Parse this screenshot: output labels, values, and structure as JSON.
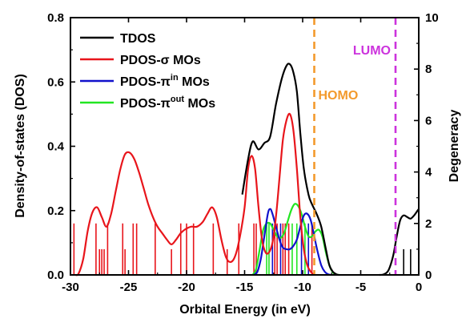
{
  "chart_data": {
    "type": "line",
    "xlabel": "Orbital Energy (in eV)",
    "ylabel": "Density-of-states (DOS)",
    "y2label": "Degeneracy",
    "xlim": [
      -30,
      0
    ],
    "ylim": [
      0,
      0.8
    ],
    "y2lim": [
      0,
      10
    ],
    "x_ticks": [
      -30,
      -25,
      -20,
      -15,
      -10,
      -5,
      0
    ],
    "y_ticks": [
      0.0,
      0.2,
      0.4,
      0.6,
      0.8
    ],
    "y_tick_labels": [
      "0.0",
      "0.2",
      "0.4",
      "0.6",
      "0.8"
    ],
    "y2_ticks": [
      0,
      2,
      4,
      6,
      8,
      10
    ],
    "legend_position": "top-left",
    "legend_entries": [
      {
        "label": "TDOS",
        "color": "#000000"
      },
      {
        "label": "PDOS-σ MOs",
        "color": "#e8151b"
      },
      {
        "label": "PDOS-π",
        "sup": "in",
        "suffix": " MOs",
        "color": "#1111cc"
      },
      {
        "label": "PDOS-π",
        "sup": "out",
        "suffix": " MOs",
        "color": "#22e622"
      }
    ],
    "annotations": [
      {
        "text": "HOMO",
        "x": -9.0,
        "color": "#f39a2c"
      },
      {
        "text": "LUMO",
        "x": -2.0,
        "color": "#cc33dd"
      }
    ],
    "series": [
      {
        "name": "TDOS",
        "color": "#000000",
        "x": [
          -15.2,
          -14.7,
          -14.3,
          -13.8,
          -13.3,
          -12.8,
          -12.3,
          -11.8,
          -11.4,
          -11.1,
          -10.8,
          -10.5,
          -10.2,
          -9.9,
          -9.5,
          -9.2,
          -8.8,
          -8.4,
          -8.0,
          -7.7,
          -7.4,
          -7.1,
          -6.9
        ],
        "y": [
          0.25,
          0.36,
          0.415,
          0.39,
          0.41,
          0.43,
          0.53,
          0.61,
          0.65,
          0.655,
          0.63,
          0.57,
          0.44,
          0.33,
          0.25,
          0.22,
          0.19,
          0.15,
          0.08,
          0.03,
          0.01,
          0.002,
          0.0
        ]
      },
      {
        "name": "TDOS",
        "color": "#000000",
        "x": [
          -3.4,
          -3.0,
          -2.6,
          -2.2,
          -1.9,
          -1.6,
          -1.3,
          -1.0,
          -0.7,
          -0.4,
          -0.1,
          0.0
        ],
        "y": [
          0.0,
          0.002,
          0.015,
          0.06,
          0.12,
          0.17,
          0.185,
          0.18,
          0.175,
          0.185,
          0.2,
          0.205
        ]
      },
      {
        "name": "PDOS-σ MOs",
        "color": "#e8151b",
        "x": [
          -29.6,
          -29.3,
          -28.9,
          -28.5,
          -28.1,
          -27.7,
          -27.3,
          -26.9,
          -26.5,
          -26.1,
          -25.7,
          -25.3,
          -24.9,
          -24.5,
          -24.1,
          -23.7,
          -23.3,
          -22.9,
          -22.5,
          -22.1,
          -21.7,
          -21.3,
          -20.9,
          -20.5,
          -20.1,
          -19.6,
          -19.1,
          -18.6,
          -18.2,
          -17.8,
          -17.4,
          -17.0,
          -16.6,
          -16.2,
          -15.8,
          -15.4,
          -15.0,
          -14.7,
          -14.4,
          -14.1,
          -13.8,
          -13.5,
          -13.2,
          -12.9,
          -12.6,
          -12.3,
          -12.0,
          -11.7,
          -11.4,
          -11.1,
          -10.8,
          -10.5,
          -10.2,
          -9.9,
          -9.6,
          -9.3,
          -9.0
        ],
        "y": [
          0.0,
          0.004,
          0.05,
          0.14,
          0.195,
          0.21,
          0.18,
          0.15,
          0.19,
          0.26,
          0.33,
          0.375,
          0.38,
          0.36,
          0.32,
          0.27,
          0.22,
          0.18,
          0.15,
          0.13,
          0.11,
          0.095,
          0.11,
          0.13,
          0.142,
          0.15,
          0.15,
          0.165,
          0.19,
          0.21,
          0.18,
          0.11,
          0.055,
          0.04,
          0.06,
          0.12,
          0.21,
          0.33,
          0.37,
          0.33,
          0.21,
          0.11,
          0.07,
          0.07,
          0.1,
          0.18,
          0.3,
          0.42,
          0.48,
          0.5,
          0.45,
          0.33,
          0.18,
          0.08,
          0.03,
          0.01,
          0.0
        ]
      },
      {
        "name": "PDOS-π in MOs",
        "color": "#1111cc",
        "x": [
          -14.2,
          -13.9,
          -13.6,
          -13.3,
          -13.0,
          -12.8,
          -12.6,
          -12.3,
          -12.0,
          -11.7,
          -11.4,
          -11.1,
          -10.8,
          -10.5,
          -10.2,
          -9.9,
          -9.6,
          -9.3,
          -9.0,
          -8.7,
          -8.4,
          -8.1,
          -7.8,
          -7.5
        ],
        "y": [
          0.0,
          0.01,
          0.05,
          0.12,
          0.19,
          0.205,
          0.19,
          0.15,
          0.11,
          0.085,
          0.08,
          0.08,
          0.09,
          0.11,
          0.15,
          0.185,
          0.19,
          0.17,
          0.12,
          0.07,
          0.03,
          0.01,
          0.002,
          0.0
        ]
      },
      {
        "name": "PDOS-π out MOs",
        "color": "#22e622",
        "x": [
          -14.3,
          -14.0,
          -13.7,
          -13.4,
          -13.1,
          -12.8,
          -12.5,
          -12.2,
          -11.9,
          -11.6,
          -11.3,
          -11.0,
          -10.7,
          -10.4,
          -10.1,
          -9.8,
          -9.5,
          -9.2,
          -8.9,
          -8.6,
          -8.3,
          -8.0,
          -7.7,
          -7.4,
          -7.1,
          -6.8
        ],
        "y": [
          0.0,
          0.02,
          0.08,
          0.14,
          0.16,
          0.16,
          0.14,
          0.12,
          0.115,
          0.13,
          0.165,
          0.2,
          0.22,
          0.215,
          0.19,
          0.15,
          0.12,
          0.12,
          0.135,
          0.14,
          0.12,
          0.07,
          0.03,
          0.008,
          0.001,
          0.0
        ]
      }
    ],
    "degeneracy_sticks": [
      {
        "x": -29.7,
        "height": 2,
        "color": "#e8151b"
      },
      {
        "x": -27.8,
        "height": 2,
        "color": "#e8151b"
      },
      {
        "x": -27.5,
        "height": 1,
        "color": "#e8151b"
      },
      {
        "x": -27.3,
        "height": 1,
        "color": "#e8151b"
      },
      {
        "x": -27.1,
        "height": 1,
        "color": "#e8151b"
      },
      {
        "x": -26.8,
        "height": 2,
        "color": "#e8151b"
      },
      {
        "x": -25.5,
        "height": 2,
        "color": "#e8151b"
      },
      {
        "x": -25.3,
        "height": 1,
        "color": "#e8151b"
      },
      {
        "x": -24.6,
        "height": 2,
        "color": "#e8151b"
      },
      {
        "x": -24.3,
        "height": 2,
        "color": "#e8151b"
      },
      {
        "x": -22.7,
        "height": 2,
        "color": "#e8151b"
      },
      {
        "x": -21.3,
        "height": 1,
        "color": "#e8151b"
      },
      {
        "x": -20.5,
        "height": 2,
        "color": "#e8151b"
      },
      {
        "x": -20.0,
        "height": 2,
        "color": "#e8151b"
      },
      {
        "x": -19.4,
        "height": 2,
        "color": "#e8151b"
      },
      {
        "x": -17.7,
        "height": 2,
        "color": "#e8151b"
      },
      {
        "x": -16.5,
        "height": 1,
        "color": "#e8151b"
      },
      {
        "x": -15.5,
        "height": 2,
        "color": "#e8151b"
      },
      {
        "x": -14.2,
        "height": 2,
        "color": "#e8151b"
      },
      {
        "x": -14.0,
        "height": 2,
        "color": "#e8151b"
      },
      {
        "x": -13.1,
        "height": 2,
        "color": "#22e622"
      },
      {
        "x": -12.9,
        "height": 2,
        "color": "#22e622"
      },
      {
        "x": -12.6,
        "height": 2,
        "color": "#1111cc"
      },
      {
        "x": -12.4,
        "height": 2,
        "color": "#e8151b"
      },
      {
        "x": -12.2,
        "height": 2,
        "color": "#e8151b"
      },
      {
        "x": -11.9,
        "height": 2,
        "color": "#1111cc"
      },
      {
        "x": -11.7,
        "height": 2,
        "color": "#e8151b"
      },
      {
        "x": -11.5,
        "height": 2,
        "color": "#e8151b"
      },
      {
        "x": -11.2,
        "height": 2,
        "color": "#e8151b"
      },
      {
        "x": -10.9,
        "height": 2,
        "color": "#22e622"
      },
      {
        "x": -10.5,
        "height": 2,
        "color": "#22e622"
      },
      {
        "x": -10.1,
        "height": 2,
        "color": "#1111cc"
      },
      {
        "x": -9.8,
        "height": 2,
        "color": "#22e622"
      },
      {
        "x": -9.5,
        "height": 2,
        "color": "#1111cc"
      },
      {
        "x": -9.2,
        "height": 2,
        "color": "#e8151b"
      },
      {
        "x": -1.3,
        "height": 1,
        "color": "#000000"
      },
      {
        "x": -0.7,
        "height": 1,
        "color": "#000000"
      }
    ]
  }
}
